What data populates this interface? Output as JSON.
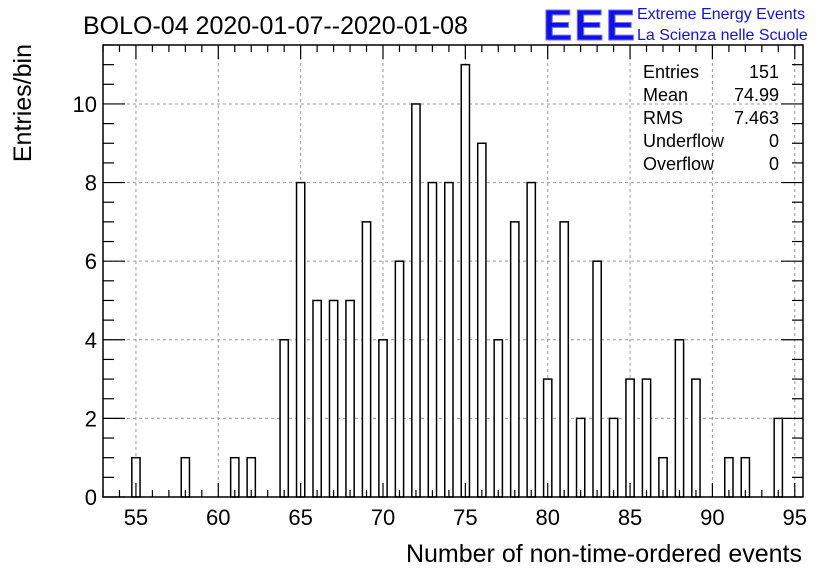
{
  "title": "BOLO-04 2020-01-07--2020-01-08",
  "logo": {
    "mark": "EEE",
    "line1": "Extreme Energy Events",
    "line2": "La Scienza nelle Scuole",
    "color": "#1010ee"
  },
  "stats": [
    {
      "label": "Entries",
      "value": "151"
    },
    {
      "label": "Mean",
      "value": "74.99"
    },
    {
      "label": "RMS",
      "value": "7.463"
    },
    {
      "label": "Underflow",
      "value": "0"
    },
    {
      "label": "Overflow",
      "value": "0"
    }
  ],
  "chart_data": {
    "type": "bar",
    "style": "histogram-outline",
    "xlabel": "Number of non-time-ordered events",
    "ylabel": "Entries/bin",
    "xlim": [
      53,
      95.5
    ],
    "ylim": [
      0,
      11.5
    ],
    "grid": true,
    "xticks": [
      55,
      60,
      65,
      70,
      75,
      80,
      85,
      90,
      95
    ],
    "yticks": [
      0,
      2,
      4,
      6,
      8,
      10
    ],
    "bar_width": 0.5,
    "x": [
      55,
      58,
      61,
      62,
      64,
      65,
      66,
      67,
      68,
      69,
      70,
      71,
      72,
      73,
      74,
      75,
      76,
      77,
      78,
      79,
      80,
      81,
      82,
      83,
      84,
      85,
      86,
      87,
      88,
      89,
      91,
      92,
      94
    ],
    "values": [
      1,
      1,
      1,
      1,
      4,
      8,
      5,
      5,
      5,
      7,
      4,
      6,
      10,
      8,
      8,
      11,
      9,
      4,
      7,
      8,
      3,
      7,
      2,
      6,
      2,
      3,
      3,
      1,
      4,
      3,
      1,
      1,
      2
    ]
  }
}
